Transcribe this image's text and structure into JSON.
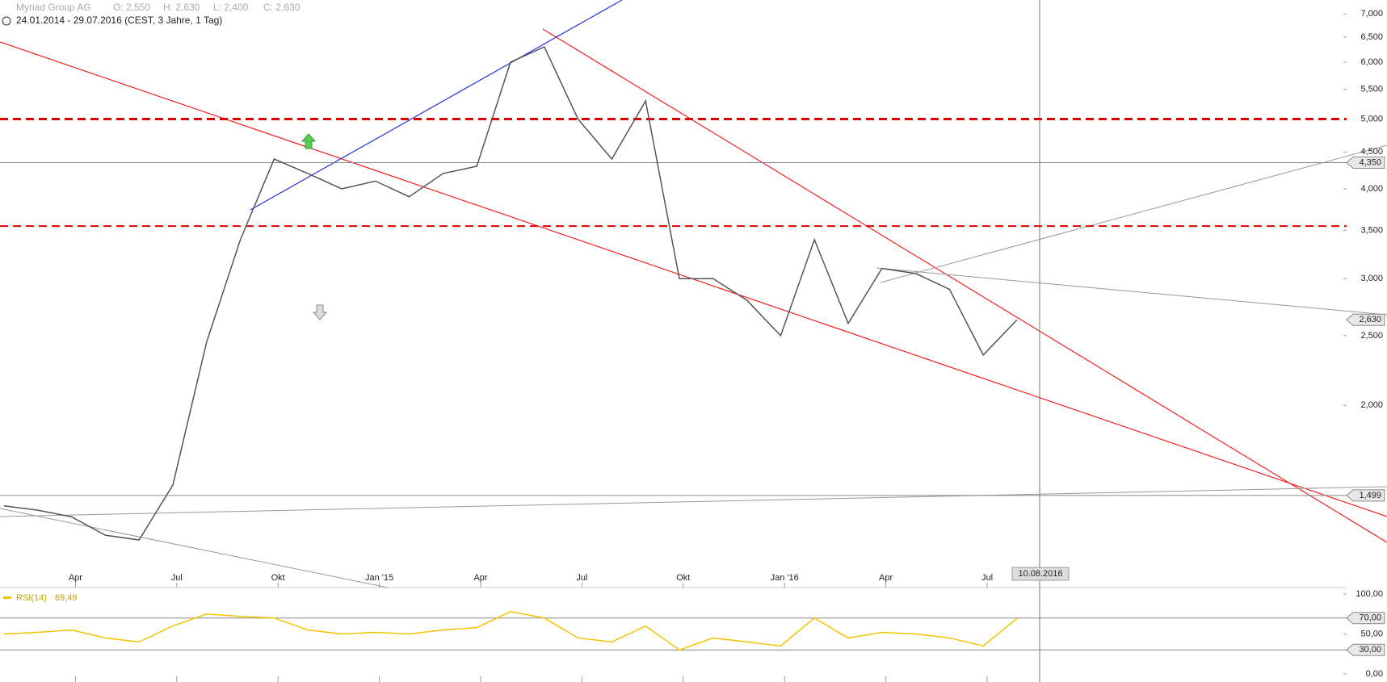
{
  "chart_data": {
    "type": "line",
    "title": "Myriad Group AG",
    "ohlc": [
      "O: 2,550",
      "H: 2,630",
      "L: 2,400",
      "C: 2,630"
    ],
    "subtitle": "24.01.2014 - 29.07.2016 (CEST, 3 Jahre, 1 Tag)",
    "cursor_date": "10.08.2016",
    "log_y": true,
    "x": [
      "2014-01",
      "2014-02",
      "2014-03",
      "2014-04",
      "2014-05",
      "2014-06",
      "2014-07",
      "2014-08",
      "2014-09",
      "2014-10",
      "2014-11",
      "2014-12",
      "2015-01",
      "2015-02",
      "2015-03",
      "2015-04",
      "2015-05",
      "2015-06",
      "2015-07",
      "2015-08",
      "2015-09",
      "2015-10",
      "2015-11",
      "2015-12",
      "2016-01",
      "2016-02",
      "2016-03",
      "2016-04",
      "2016-05",
      "2016-06",
      "2016-07"
    ],
    "series": [
      {
        "name": "Myriad Group AG",
        "color": "#555555",
        "values": [
          1.45,
          1.43,
          1.4,
          1.32,
          1.3,
          1.55,
          2.45,
          3.4,
          4.4,
          4.2,
          4.0,
          4.1,
          3.9,
          4.2,
          4.3,
          6.0,
          6.3,
          5.0,
          4.4,
          5.3,
          3.0,
          3.0,
          2.8,
          2.5,
          3.4,
          2.6,
          3.1,
          3.05,
          2.9,
          2.35,
          2.63
        ]
      }
    ],
    "current_label": {
      "value": 2.63,
      "label": "2,630"
    },
    "ylim": [
      1.2,
      7.32
    ],
    "yticks": [
      {
        "value": 2,
        "label": "2,000"
      },
      {
        "value": 2.5,
        "label": "2,500"
      },
      {
        "value": 3,
        "label": "3,000"
      },
      {
        "value": 3.5,
        "label": "3,500"
      },
      {
        "value": 4,
        "label": "4,000"
      },
      {
        "value": 4.5,
        "label": "4,500"
      },
      {
        "value": 5,
        "label": "5,000"
      },
      {
        "value": 5.5,
        "label": "5,500"
      },
      {
        "value": 6,
        "label": "6,000"
      },
      {
        "value": 6.5,
        "label": "6,500"
      },
      {
        "value": 7,
        "label": "7,000"
      }
    ],
    "xticks": [
      {
        "value": "2014-04",
        "label": "Apr"
      },
      {
        "value": "2014-07",
        "label": "Jul"
      },
      {
        "value": "2014-10",
        "label": "Okt"
      },
      {
        "value": "2015-01",
        "label": "Jan '15"
      },
      {
        "value": "2015-04",
        "label": "Apr"
      },
      {
        "value": "2015-07",
        "label": "Jul"
      },
      {
        "value": "2015-10",
        "label": "Okt"
      },
      {
        "value": "2016-01",
        "label": "Jan '16"
      },
      {
        "value": "2016-04",
        "label": "Apr"
      },
      {
        "value": "2016-07",
        "label": "Jul"
      }
    ],
    "hlines": [
      {
        "value": 4.35,
        "label": "4,350"
      },
      {
        "value": 1.499,
        "label": "1,499"
      }
    ],
    "dashed_levels": [
      5.0,
      3.55
    ],
    "rsi": {
      "name": "RSI(14)",
      "label": "69,49",
      "color": "#f5c400",
      "values": [
        50,
        52,
        55,
        45,
        40,
        60,
        75,
        72,
        70,
        55,
        50,
        52,
        50,
        55,
        58,
        78,
        70,
        45,
        40,
        60,
        30,
        45,
        40,
        35,
        70,
        45,
        52,
        50,
        45,
        35,
        69.49
      ],
      "ylim": [
        0,
        100
      ],
      "yticks": [
        {
          "value": 0,
          "label": "0,00"
        },
        {
          "value": 50,
          "label": "50,00"
        },
        {
          "value": 100,
          "label": "100,00"
        }
      ],
      "levels": [
        {
          "value": 70,
          "label": "70,00"
        },
        {
          "value": 30,
          "label": "30,00"
        }
      ]
    }
  }
}
